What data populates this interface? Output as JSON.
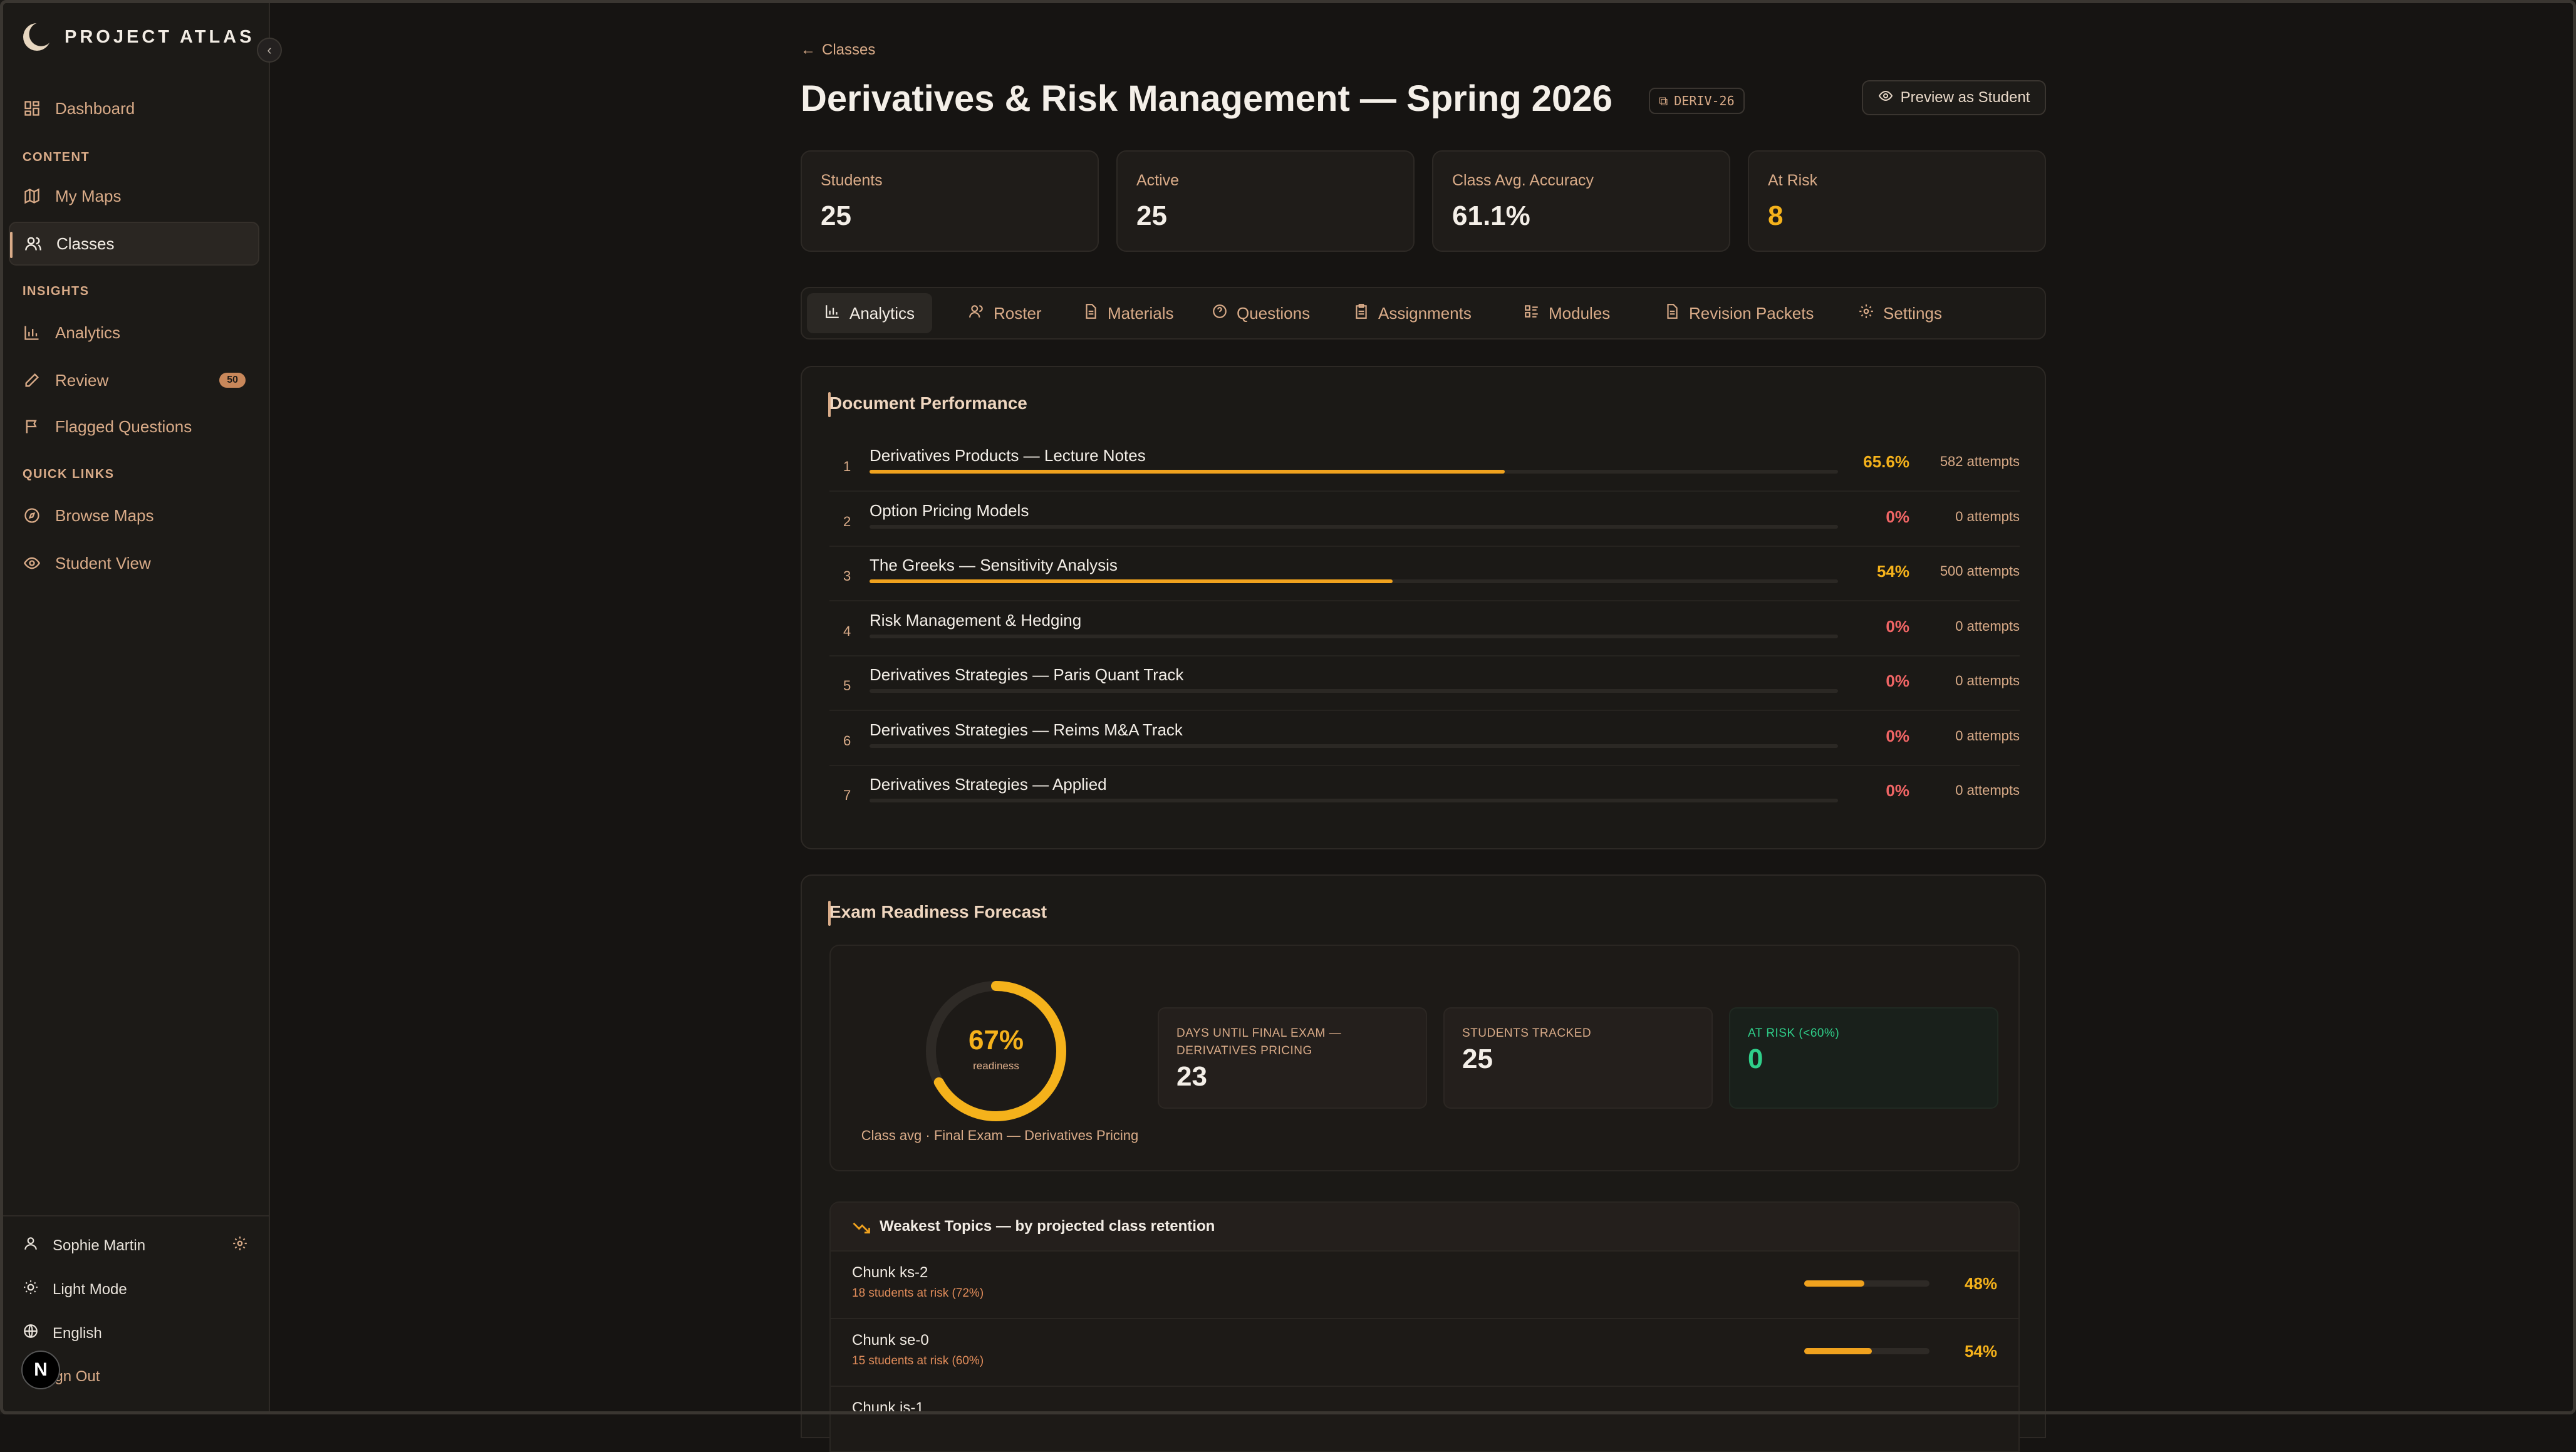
{
  "brand": {
    "name": "PROJECT ATLAS"
  },
  "sidebar": {
    "dashboard": "Dashboard",
    "section_content": "CONTENT",
    "my_maps": "My Maps",
    "classes": "Classes",
    "section_insights": "INSIGHTS",
    "analytics": "Analytics",
    "review": "Review",
    "review_badge": "50",
    "flagged": "Flagged Questions",
    "section_quick": "QUICK LINKS",
    "browse_maps": "Browse Maps",
    "student_view": "Student View"
  },
  "footer": {
    "user_name": "Sophie Martin",
    "theme": "Light Mode",
    "language": "English",
    "sign_out": "Sign Out",
    "n_badge": "N"
  },
  "header": {
    "back": "Classes",
    "title": "Derivatives & Risk Management — Spring 2026",
    "code": "DERIV-26",
    "preview_button": "Preview as Student"
  },
  "stats": [
    {
      "label": "Students",
      "value": "25"
    },
    {
      "label": "Active",
      "value": "25"
    },
    {
      "label": "Class Avg. Accuracy",
      "value": "61.1%"
    },
    {
      "label": "At Risk",
      "value": "8"
    }
  ],
  "tabs": [
    "Analytics",
    "Roster",
    "Materials",
    "Questions",
    "Assignments",
    "Modules",
    "Revision Packets",
    "Settings"
  ],
  "doc_performance": {
    "title": "Document Performance",
    "rows": [
      {
        "num": "1",
        "name": "Derivatives Products — Lecture Notes",
        "pct": "65.6%",
        "fill": 0.656,
        "attempts": "582 attempts"
      },
      {
        "num": "2",
        "name": "Option Pricing Models",
        "pct": "0%",
        "fill": 0,
        "attempts": "0 attempts"
      },
      {
        "num": "3",
        "name": "The Greeks — Sensitivity Analysis",
        "pct": "54%",
        "fill": 0.54,
        "attempts": "500 attempts"
      },
      {
        "num": "4",
        "name": "Risk Management & Hedging",
        "pct": "0%",
        "fill": 0,
        "attempts": "0 attempts"
      },
      {
        "num": "5",
        "name": "Derivatives Strategies — Paris Quant Track",
        "pct": "0%",
        "fill": 0,
        "attempts": "0 attempts"
      },
      {
        "num": "6",
        "name": "Derivatives Strategies — Reims M&A Track",
        "pct": "0%",
        "fill": 0,
        "attempts": "0 attempts"
      },
      {
        "num": "7",
        "name": "Derivatives Strategies — Applied",
        "pct": "0%",
        "fill": 0,
        "attempts": "0 attempts"
      }
    ]
  },
  "forecast": {
    "title": "Exam Readiness Forecast",
    "readiness_pct": "67%",
    "readiness_value": 0.67,
    "readiness_label": "readiness",
    "caption": "Class avg · Final Exam — Derivatives Pricing",
    "days_label": "DAYS UNTIL FINAL EXAM — DERIVATIVES PRICING",
    "days_value": "23",
    "tracked_label": "STUDENTS TRACKED",
    "tracked_value": "25",
    "risk_label": "AT RISK (<60%)",
    "risk_value": "0"
  },
  "weakest": {
    "title": "Weakest Topics — by projected class retention",
    "rows": [
      {
        "name": "Chunk ks-2",
        "sub": "18 students at risk (72%)",
        "pct": "48%",
        "fill": 0.48
      },
      {
        "name": "Chunk se-0",
        "sub": "15 students at risk (60%)",
        "pct": "54%",
        "fill": 0.54
      },
      {
        "name": "Chunk is-1",
        "sub": "",
        "pct": "",
        "fill": 0
      }
    ]
  },
  "colors": {
    "accent": "#d9ab88",
    "warning": "#f5b21b",
    "danger": "#f06565",
    "success": "#2fcf8a",
    "bar": "#f0a21e"
  }
}
